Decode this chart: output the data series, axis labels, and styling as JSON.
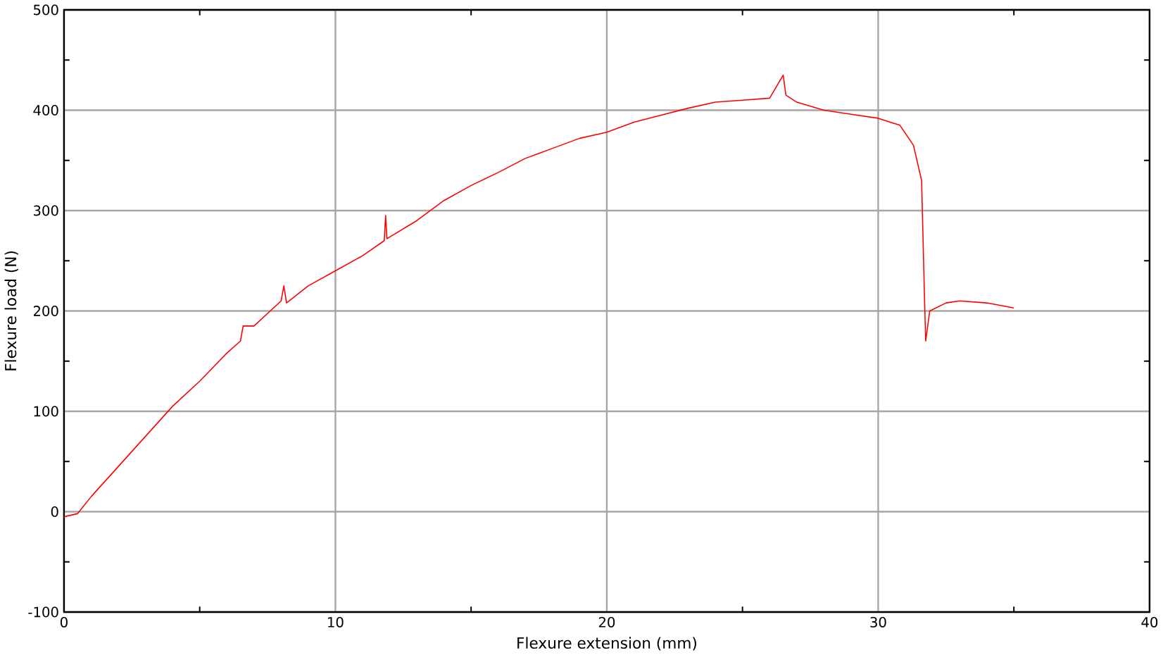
{
  "chart_data": {
    "type": "line",
    "xlabel": "Flexure extension (mm)",
    "ylabel": "Flexure load (N)",
    "xlim": [
      0,
      40
    ],
    "ylim": [
      -100,
      500
    ],
    "xticks": [
      0,
      {
        "value": 5,
        "label": null
      },
      10,
      {
        "value": 15,
        "label": null
      },
      20,
      {
        "value": 25,
        "label": null
      },
      30,
      {
        "value": 35,
        "label": null
      },
      40
    ],
    "yticks": [
      -100,
      {
        "value": -50,
        "label": null
      },
      0,
      {
        "value": 50,
        "label": null
      },
      100,
      {
        "value": 150,
        "label": null
      },
      200,
      {
        "value": 250,
        "label": null
      },
      300,
      {
        "value": 350,
        "label": null
      },
      400,
      {
        "value": 450,
        "label": null
      },
      500
    ],
    "grid": true,
    "marker": "none",
    "line_style": "solid",
    "series": [
      {
        "color": "#ff0000",
        "x": [
          0,
          0.5,
          1,
          2,
          3,
          4,
          5,
          6,
          6.5,
          6.6,
          7,
          8,
          8.1,
          8.2,
          9,
          10,
          11,
          11.8,
          11.85,
          11.9,
          13,
          14,
          15,
          16,
          17,
          18,
          19,
          20,
          21,
          22,
          23,
          24,
          25,
          26,
          26.5,
          26.6,
          27,
          28,
          29,
          30,
          30.8,
          31.3,
          31.6,
          31.7,
          31.75,
          31.9,
          32.5,
          33,
          34,
          35
        ],
        "values": [
          -5,
          -2,
          15,
          45,
          75,
          105,
          130,
          158,
          170,
          185,
          185,
          210,
          225,
          208,
          225,
          240,
          255,
          270,
          295,
          272,
          290,
          310,
          325,
          338,
          352,
          362,
          372,
          378,
          388,
          395,
          402,
          408,
          410,
          412,
          435,
          415,
          408,
          400,
          396,
          392,
          385,
          365,
          330,
          220,
          170,
          200,
          208,
          210,
          208,
          203
        ]
      }
    ]
  }
}
